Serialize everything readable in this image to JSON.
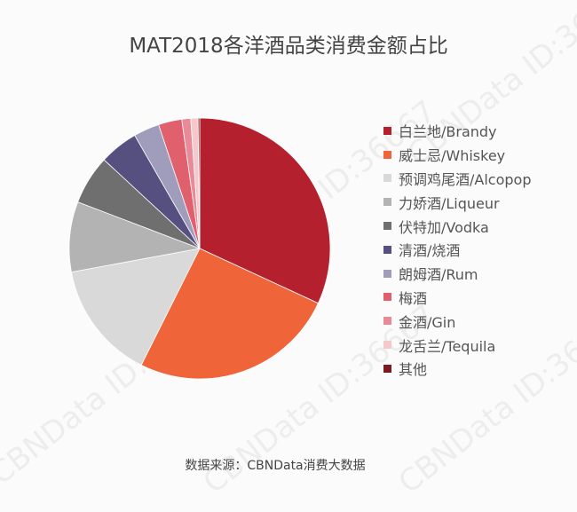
{
  "chart_data": {
    "type": "pie",
    "title": "MAT2018各洋酒品类消费金额占比",
    "source": "数据来源：CBNData消费大数据",
    "watermark": "CBNData ID:36667",
    "legend_position": "right",
    "slices": [
      {
        "label": "白兰地/Brandy",
        "value": 31.9,
        "color": "#b5202e"
      },
      {
        "label": "威士忌/Whiskey",
        "value": 25.5,
        "color": "#f0643a"
      },
      {
        "label": "预调鸡尾酒/Alcopop",
        "value": 14.7,
        "color": "#d9d9d9"
      },
      {
        "label": "力娇酒/Liqueur",
        "value": 8.7,
        "color": "#b3b3b3"
      },
      {
        "label": "伏特加/Vodka",
        "value": 6.1,
        "color": "#6f6f6f"
      },
      {
        "label": "清酒/烧酒",
        "value": 4.8,
        "color": "#555080"
      },
      {
        "label": "朗姆酒/Rum",
        "value": 3.2,
        "color": "#a09cbc"
      },
      {
        "label": "梅酒",
        "value": 2.9,
        "color": "#e0606e"
      },
      {
        "label": "金酒/Gin",
        "value": 1.1,
        "color": "#e88a98"
      },
      {
        "label": "龙舌兰/Tequila",
        "value": 0.9,
        "color": "#f5c8cc"
      },
      {
        "label": "其他",
        "value": 0.2,
        "color": "#7a1a20"
      }
    ]
  }
}
